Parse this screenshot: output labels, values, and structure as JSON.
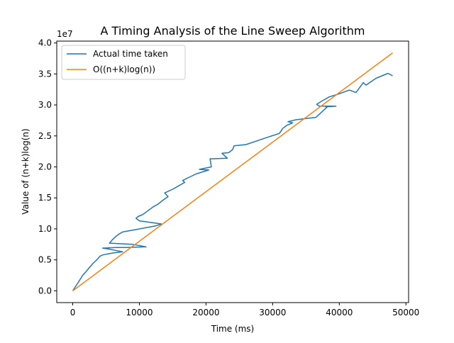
{
  "chart_data": {
    "type": "line",
    "title": "A Timing Analysis of the Line Sweep Algorithm",
    "xlabel": "Time (ms)",
    "ylabel": "Value of (n+k)log(n)",
    "y_offset_label": "1e7",
    "xlim": [
      -2400,
      50400
    ],
    "ylim": [
      -1900000,
      40300000
    ],
    "x_ticks": [
      0,
      10000,
      20000,
      30000,
      40000,
      50000
    ],
    "x_tick_labels": [
      "0",
      "10000",
      "20000",
      "30000",
      "40000",
      "50000"
    ],
    "y_ticks": [
      0,
      5000000,
      10000000,
      15000000,
      20000000,
      25000000,
      30000000,
      35000000,
      40000000
    ],
    "y_tick_labels": [
      "0.0",
      "0.5",
      "1.0",
      "1.5",
      "2.0",
      "2.5",
      "3.0",
      "3.5",
      "4.0"
    ],
    "grid": false,
    "legend_position": "top-left",
    "series": [
      {
        "name": "Actual time taken",
        "color": "#1f77b4",
        "x": [
          0,
          300,
          600,
          900,
          1200,
          1500,
          1900,
          2300,
          2700,
          3100,
          3600,
          4100,
          4500,
          5000,
          5500,
          6000,
          7500,
          5600,
          4500,
          6500,
          8000,
          11000,
          9000,
          5500,
          6000,
          6500,
          7000,
          7500,
          9000,
          10500,
          12500,
          13300,
          10000,
          9500,
          9800,
          10500,
          11000,
          11500,
          12000,
          12800,
          13500,
          14300,
          13800,
          15000,
          16000,
          16800,
          16500,
          17600,
          18600,
          20400,
          19000,
          20800,
          20600,
          23200,
          22400,
          23400,
          24000,
          24200,
          26000,
          29000,
          31000,
          31500,
          32100,
          33000,
          32300,
          33500,
          35000,
          36500,
          38200,
          38000,
          39500,
          37000,
          36600,
          37500,
          38500,
          40000,
          41500,
          42500,
          43600,
          44000,
          45500,
          47300,
          48000
        ],
        "y": [
          0,
          500000,
          1000000,
          1500000,
          2000000,
          2500000,
          3000000,
          3500000,
          4000000,
          4500000,
          5000000,
          5600000,
          5800000,
          5900000,
          6000000,
          6100000,
          6300000,
          6700000,
          6900000,
          7000000,
          7000000,
          7100000,
          7500000,
          7700000,
          8300000,
          8800000,
          9200000,
          9500000,
          9800000,
          10100000,
          10500000,
          10800000,
          11300000,
          11700000,
          12000000,
          12300000,
          12700000,
          13100000,
          13500000,
          14000000,
          14600000,
          15200000,
          15800000,
          16400000,
          17000000,
          17500000,
          17800000,
          18400000,
          18900000,
          19500000,
          19600000,
          20000000,
          21300000,
          21400000,
          22200000,
          22300000,
          22800000,
          23400000,
          23600000,
          24700000,
          25400000,
          26200000,
          26700000,
          27100000,
          27300000,
          27600000,
          27800000,
          28000000,
          29700000,
          29700000,
          29800000,
          29800000,
          30100000,
          30700000,
          31300000,
          31800000,
          32400000,
          32000000,
          33600000,
          33200000,
          34300000,
          35100000,
          34700000
        ]
      },
      {
        "name": "O((n+k)log(n))",
        "color": "#ff7f0e",
        "x": [
          0,
          48000
        ],
        "y": [
          0,
          38400000
        ]
      }
    ]
  }
}
